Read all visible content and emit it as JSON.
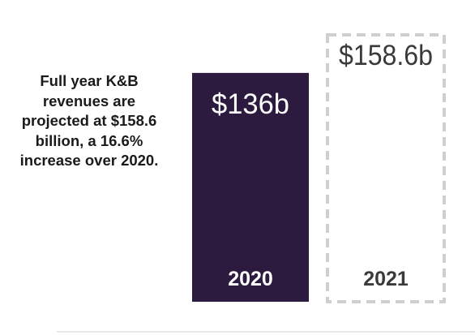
{
  "caption": "Full year K&B revenues are projected at $158.6 billion, a 16.6% increase over 2020.",
  "colors": {
    "actual_bar": "#2d1a3f",
    "projected_border": "#cfcfcf",
    "projected_text": "#3a3a3a",
    "actual_text": "#ffffff",
    "rule": "#d9d9d9"
  },
  "chart_data": {
    "type": "bar",
    "title": "",
    "xlabel": "",
    "ylabel": "",
    "categories": [
      "2020",
      "2021"
    ],
    "values": [
      136,
      158.6
    ],
    "value_labels": [
      "$136b",
      "$158.6b"
    ],
    "unit": "billion USD",
    "styles": [
      "solid",
      "dashed-outline"
    ],
    "ylim": [
      0,
      158.6
    ],
    "grid": false,
    "legend": "none"
  }
}
